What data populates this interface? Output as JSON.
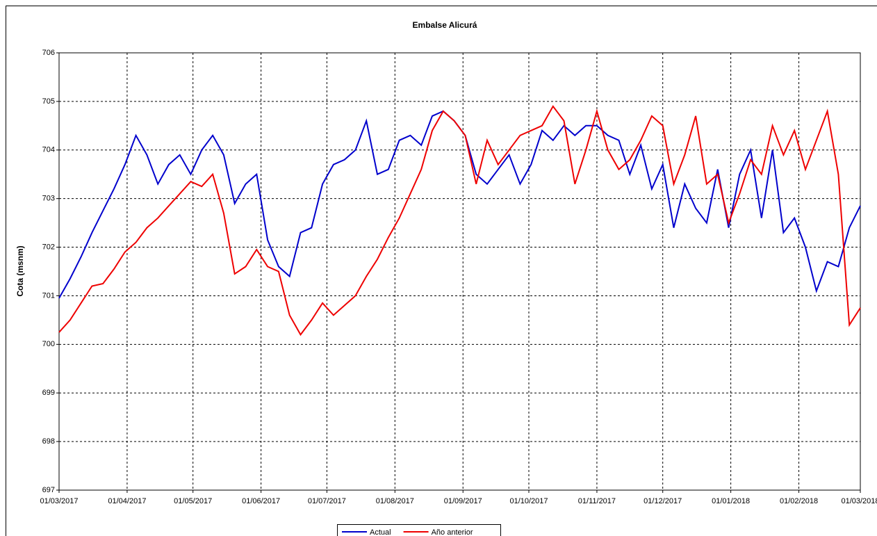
{
  "chart_data": {
    "type": "line",
    "title": "Embalse Alicurá",
    "y_label": "Cota (msnm)",
    "x": [
      "2017-03-01",
      "2017-03-06",
      "2017-03-11",
      "2017-03-16",
      "2017-03-21",
      "2017-03-26",
      "2017-03-31",
      "2017-04-05",
      "2017-04-10",
      "2017-04-15",
      "2017-04-20",
      "2017-04-25",
      "2017-04-30",
      "2017-05-05",
      "2017-05-10",
      "2017-05-15",
      "2017-05-20",
      "2017-05-25",
      "2017-05-30",
      "2017-06-04",
      "2017-06-09",
      "2017-06-14",
      "2017-06-19",
      "2017-06-24",
      "2017-06-29",
      "2017-07-04",
      "2017-07-09",
      "2017-07-14",
      "2017-07-19",
      "2017-07-24",
      "2017-07-29",
      "2017-08-03",
      "2017-08-08",
      "2017-08-13",
      "2017-08-18",
      "2017-08-23",
      "2017-08-28",
      "2017-09-02",
      "2017-09-07",
      "2017-09-12",
      "2017-09-17",
      "2017-09-22",
      "2017-09-27",
      "2017-10-02",
      "2017-10-07",
      "2017-10-12",
      "2017-10-17",
      "2017-10-22",
      "2017-10-27",
      "2017-11-01",
      "2017-11-06",
      "2017-11-11",
      "2017-11-16",
      "2017-11-21",
      "2017-11-26",
      "2017-12-01",
      "2017-12-06",
      "2017-12-11",
      "2017-12-16",
      "2017-12-21",
      "2017-12-26",
      "2017-12-31",
      "2018-01-05",
      "2018-01-10",
      "2018-01-15",
      "2018-01-20",
      "2018-01-25",
      "2018-01-30",
      "2018-02-04",
      "2018-02-09",
      "2018-02-14",
      "2018-02-19",
      "2018-02-24",
      "2018-03-01"
    ],
    "series": [
      {
        "name": "Actual",
        "color": "#0000cc",
        "values": [
          700.95,
          701.35,
          701.8,
          702.3,
          702.75,
          703.2,
          703.7,
          704.3,
          703.9,
          703.3,
          703.7,
          703.9,
          703.5,
          704.0,
          704.3,
          703.9,
          702.9,
          703.3,
          703.5,
          702.15,
          701.6,
          701.4,
          702.3,
          702.4,
          703.3,
          703.7,
          703.8,
          704.0,
          704.6,
          703.5,
          703.6,
          704.2,
          704.3,
          704.1,
          704.7,
          704.8,
          704.6,
          704.3,
          703.5,
          703.3,
          703.6,
          703.9,
          703.3,
          703.7,
          704.4,
          704.2,
          704.5,
          704.3,
          704.5,
          704.5,
          704.3,
          704.2,
          703.5,
          704.1,
          703.2,
          703.7,
          702.4,
          703.3,
          702.8,
          702.5,
          703.6,
          702.4,
          703.5,
          704.0,
          702.6,
          704.0,
          702.3,
          702.6,
          702.0,
          701.1,
          701.7,
          701.6,
          702.4,
          702.85
        ]
      },
      {
        "name": "Año anterior",
        "color": "#ee0000",
        "values": [
          700.25,
          700.5,
          700.85,
          701.2,
          701.25,
          701.55,
          701.9,
          702.1,
          702.4,
          702.6,
          702.85,
          703.1,
          703.35,
          703.25,
          703.5,
          702.7,
          701.45,
          701.6,
          701.95,
          701.6,
          701.5,
          700.6,
          700.2,
          700.5,
          700.85,
          700.6,
          700.8,
          701.0,
          701.4,
          701.75,
          702.2,
          702.6,
          703.1,
          703.6,
          704.4,
          704.8,
          704.6,
          704.3,
          703.3,
          704.2,
          703.7,
          704.0,
          704.3,
          704.4,
          704.5,
          704.9,
          704.6,
          703.3,
          704.0,
          704.8,
          704.0,
          703.6,
          703.8,
          704.2,
          704.7,
          704.5,
          703.3,
          703.9,
          704.7,
          703.3,
          703.5,
          702.5,
          703.1,
          703.8,
          703.5,
          704.5,
          703.9,
          704.4,
          703.6,
          704.2,
          704.8,
          703.5,
          700.4,
          700.75
        ]
      }
    ],
    "xlim": [
      "2017-03-01",
      "2018-03-01"
    ],
    "xticks": [
      {
        "value": "2017-03-01",
        "label": "01/03/2017"
      },
      {
        "value": "2017-04-01",
        "label": "01/04/2017"
      },
      {
        "value": "2017-05-01",
        "label": "01/05/2017"
      },
      {
        "value": "2017-06-01",
        "label": "01/06/2017"
      },
      {
        "value": "2017-07-01",
        "label": "01/07/2017"
      },
      {
        "value": "2017-08-01",
        "label": "01/08/2017"
      },
      {
        "value": "2017-09-01",
        "label": "01/09/2017"
      },
      {
        "value": "2017-10-01",
        "label": "01/10/2017"
      },
      {
        "value": "2017-11-01",
        "label": "01/11/2017"
      },
      {
        "value": "2017-12-01",
        "label": "01/12/2017"
      },
      {
        "value": "2018-01-01",
        "label": "01/01/2018"
      },
      {
        "value": "2018-02-01",
        "label": "01/02/2018"
      },
      {
        "value": "2018-03-01",
        "label": "01/03/2018"
      }
    ],
    "ylim": [
      697,
      706
    ],
    "yticks": [
      697,
      698,
      699,
      700,
      701,
      702,
      703,
      704,
      705,
      706
    ],
    "grid": true,
    "legend": "bottom"
  }
}
